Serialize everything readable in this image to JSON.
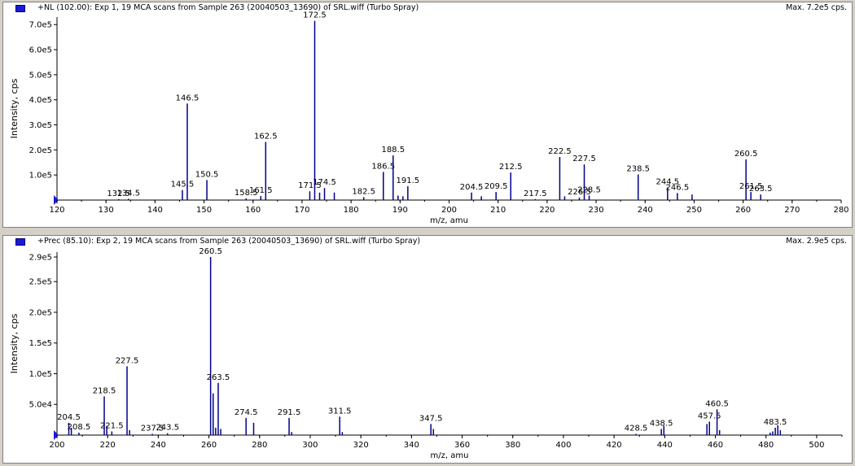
{
  "panes": [
    {
      "title": "+NL (102.00): Exp 1, 19 MCA scans from Sample 263 (20040503_13690) of SRL.wiff (Turbo Spray)",
      "max_label": "Max. 7.2e5 cps.",
      "series_color": "#00008b",
      "marker_color": "#1a1ad8"
    },
    {
      "title": "+Prec (85.10): Exp 2, 19 MCA scans from Sample 263 (20040503_13690) of SRL.wiff (Turbo Spray)",
      "max_label": "Max. 2.9e5 cps.",
      "series_color": "#00008b",
      "marker_color": "#1a1ad8"
    }
  ],
  "chart_data": [
    {
      "type": "bar",
      "xlabel": "m/z, amu",
      "ylabel": "Intensity, cps",
      "xlim": [
        120,
        280
      ],
      "ylim": [
        0,
        730000
      ],
      "xticks": [
        "120",
        "130",
        "140",
        "150",
        "160",
        "170",
        "180",
        "190",
        "200",
        "210",
        "220",
        "230",
        "240",
        "250",
        "260",
        "270",
        "280"
      ],
      "yticks": [
        "1.0e5",
        "2.0e5",
        "3.0e5",
        "4.0e5",
        "5.0e5",
        "6.0e5",
        "7.0e5"
      ],
      "peaks": [
        {
          "x": 132.5,
          "y": 4000,
          "label": "132.5"
        },
        {
          "x": 134.5,
          "y": 5000,
          "label": "134.5"
        },
        {
          "x": 145.5,
          "y": 40000,
          "label": "145.5"
        },
        {
          "x": 146.5,
          "y": 385000,
          "label": "146.5"
        },
        {
          "x": 150.5,
          "y": 80000,
          "label": "150.5"
        },
        {
          "x": 158.5,
          "y": 7000,
          "label": "158.5"
        },
        {
          "x": 161.5,
          "y": 16000,
          "label": "161.5"
        },
        {
          "x": 162.5,
          "y": 232000,
          "label": "162.5"
        },
        {
          "x": 171.5,
          "y": 35000,
          "label": "171.5"
        },
        {
          "x": 172.5,
          "y": 715000,
          "label": "172.5"
        },
        {
          "x": 173.5,
          "y": 30000,
          "label": ""
        },
        {
          "x": 174.5,
          "y": 48000,
          "label": "174.5"
        },
        {
          "x": 176.5,
          "y": 30000,
          "label": ""
        },
        {
          "x": 182.5,
          "y": 12000,
          "label": "182.5"
        },
        {
          "x": 186.5,
          "y": 112000,
          "label": "186.5"
        },
        {
          "x": 188.5,
          "y": 178000,
          "label": "188.5"
        },
        {
          "x": 189.5,
          "y": 18000,
          "label": ""
        },
        {
          "x": 190.5,
          "y": 15000,
          "label": ""
        },
        {
          "x": 191.5,
          "y": 55000,
          "label": "191.5"
        },
        {
          "x": 204.5,
          "y": 30000,
          "label": "204.5"
        },
        {
          "x": 206.5,
          "y": 15000,
          "label": ""
        },
        {
          "x": 209.5,
          "y": 32000,
          "label": "209.5"
        },
        {
          "x": 212.5,
          "y": 110000,
          "label": "212.5"
        },
        {
          "x": 217.5,
          "y": 4000,
          "label": "217.5"
        },
        {
          "x": 222.5,
          "y": 172000,
          "label": "222.5"
        },
        {
          "x": 223.5,
          "y": 15000,
          "label": ""
        },
        {
          "x": 226.5,
          "y": 10000,
          "label": "226.5"
        },
        {
          "x": 227.5,
          "y": 142000,
          "label": "227.5"
        },
        {
          "x": 228.5,
          "y": 18000,
          "label": "228.5"
        },
        {
          "x": 238.5,
          "y": 102000,
          "label": "238.5"
        },
        {
          "x": 244.5,
          "y": 50000,
          "label": "244.5"
        },
        {
          "x": 246.5,
          "y": 28000,
          "label": "246.5"
        },
        {
          "x": 249.5,
          "y": 22000,
          "label": ""
        },
        {
          "x": 260.5,
          "y": 162000,
          "label": "260.5"
        },
        {
          "x": 261.5,
          "y": 32000,
          "label": "261.5"
        },
        {
          "x": 263.5,
          "y": 22000,
          "label": "263.5"
        }
      ]
    },
    {
      "type": "bar",
      "xlabel": "m/z, amu",
      "ylabel": "Intensity, cps",
      "xlim": [
        200,
        510
      ],
      "ylim": [
        0,
        298000
      ],
      "xticks": [
        "200",
        "220",
        "240",
        "260",
        "280",
        "300",
        "320",
        "340",
        "360",
        "380",
        "400",
        "420",
        "440",
        "460",
        "480",
        "500"
      ],
      "yticks": [
        "5.0e4",
        "1.0e5",
        "1.5e5",
        "2.0e5",
        "2.5e5",
        "2.9e5"
      ],
      "ytick_values": [
        50000,
        100000,
        150000,
        200000,
        250000,
        290000
      ],
      "peaks": [
        {
          "x": 204.5,
          "y": 20000,
          "label": "204.5"
        },
        {
          "x": 205.5,
          "y": 12000,
          "label": ""
        },
        {
          "x": 208.5,
          "y": 4000,
          "label": "208.5"
        },
        {
          "x": 218.5,
          "y": 63000,
          "label": "218.5"
        },
        {
          "x": 219.5,
          "y": 15000,
          "label": ""
        },
        {
          "x": 221.5,
          "y": 6000,
          "label": "221.5"
        },
        {
          "x": 227.5,
          "y": 112000,
          "label": "227.5"
        },
        {
          "x": 228.5,
          "y": 8000,
          "label": ""
        },
        {
          "x": 237.5,
          "y": 2000,
          "label": "237.5"
        },
        {
          "x": 243.5,
          "y": 3000,
          "label": "243.5"
        },
        {
          "x": 260.5,
          "y": 290000,
          "label": "260.5"
        },
        {
          "x": 261.5,
          "y": 68000,
          "label": ""
        },
        {
          "x": 262.5,
          "y": 12000,
          "label": ""
        },
        {
          "x": 263.5,
          "y": 85000,
          "label": "263.5"
        },
        {
          "x": 264.5,
          "y": 10000,
          "label": ""
        },
        {
          "x": 274.5,
          "y": 28000,
          "label": "274.5"
        },
        {
          "x": 277.5,
          "y": 20000,
          "label": ""
        },
        {
          "x": 291.5,
          "y": 28000,
          "label": "291.5"
        },
        {
          "x": 292.5,
          "y": 5000,
          "label": ""
        },
        {
          "x": 311.5,
          "y": 30000,
          "label": "311.5"
        },
        {
          "x": 312.5,
          "y": 5000,
          "label": ""
        },
        {
          "x": 347.5,
          "y": 18000,
          "label": "347.5"
        },
        {
          "x": 348.5,
          "y": 10000,
          "label": ""
        },
        {
          "x": 428.5,
          "y": 2000,
          "label": "428.5"
        },
        {
          "x": 438.5,
          "y": 10000,
          "label": "438.5"
        },
        {
          "x": 439.5,
          "y": 15000,
          "label": ""
        },
        {
          "x": 456.5,
          "y": 18000,
          "label": ""
        },
        {
          "x": 457.5,
          "y": 22000,
          "label": "457.5"
        },
        {
          "x": 460.5,
          "y": 42000,
          "label": "460.5"
        },
        {
          "x": 461.5,
          "y": 8000,
          "label": ""
        },
        {
          "x": 481.5,
          "y": 4000,
          "label": ""
        },
        {
          "x": 482.5,
          "y": 6000,
          "label": ""
        },
        {
          "x": 483.5,
          "y": 12000,
          "label": "483.5"
        },
        {
          "x": 484.5,
          "y": 16000,
          "label": ""
        },
        {
          "x": 485.5,
          "y": 8000,
          "label": ""
        }
      ]
    }
  ]
}
